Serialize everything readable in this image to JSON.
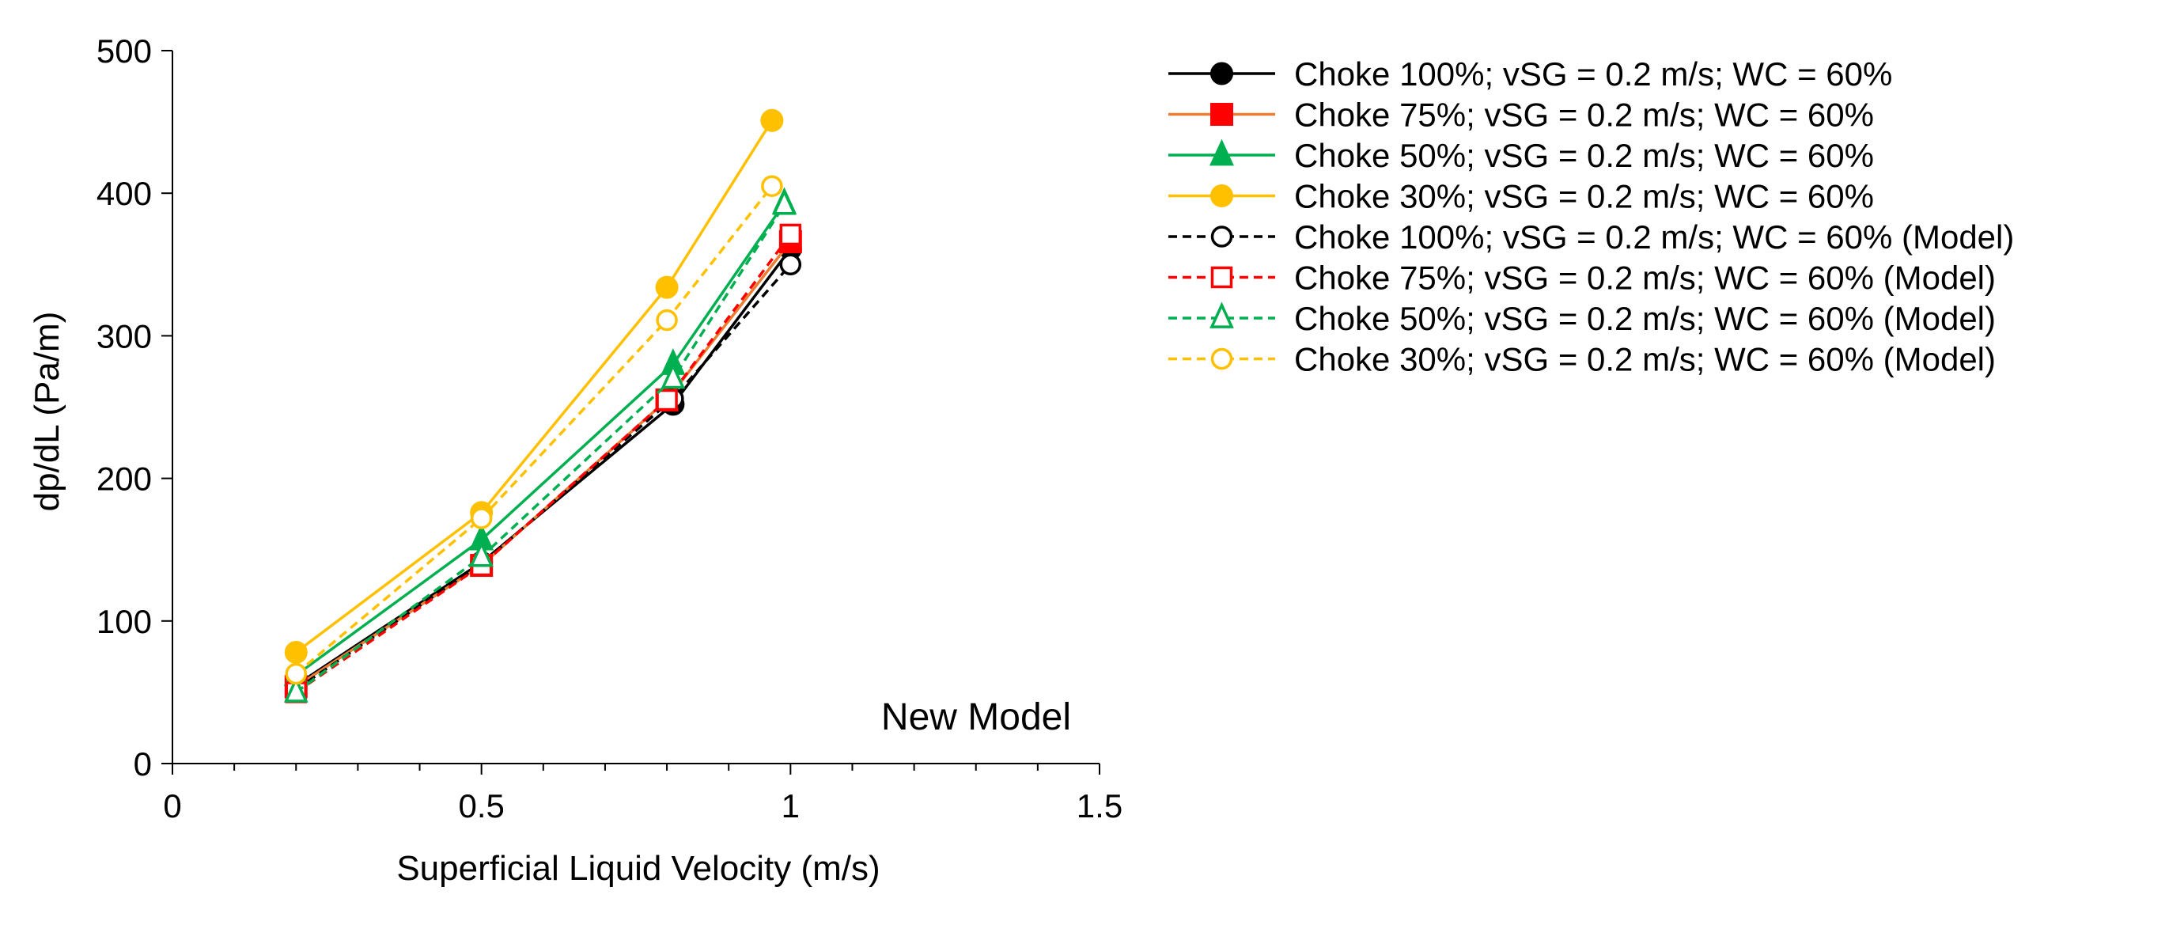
{
  "chart_data": {
    "type": "line",
    "xlabel": "Superficial Liquid Velocity (m/s)",
    "ylabel": "dp/dL  (Pa/m)",
    "xlim": [
      0,
      1.5
    ],
    "ylim": [
      0,
      500
    ],
    "xticks": [
      0,
      0.5,
      1,
      1.5
    ],
    "xtick_labels": [
      "0",
      "0.5",
      "1",
      "1.5"
    ],
    "xminor_step": 0.1,
    "yticks": [
      0,
      100,
      200,
      300,
      400,
      500
    ],
    "ytick_labels": [
      "0",
      "100",
      "200",
      "300",
      "400",
      "500"
    ],
    "grid": false,
    "legend_position": "right",
    "annotation": "New Model",
    "series": [
      {
        "name": "Choke 100%; vSG = 0.2 m/s; WC = 60%",
        "color": "#000000",
        "marker": "circle-filled",
        "dash": "solid",
        "x": [
          0.2,
          0.5,
          0.81,
          1.0
        ],
        "y": [
          55,
          141,
          252,
          361
        ]
      },
      {
        "name": "Choke 75%; vSG = 0.2 m/s; WC = 60%",
        "color": "#ff0000",
        "line_color": "#ed7d31",
        "marker": "square-filled",
        "dash": "solid",
        "x": [
          0.2,
          0.5,
          0.8,
          1.0
        ],
        "y": [
          54,
          139,
          255,
          366
        ]
      },
      {
        "name": "Choke 50%; vSG = 0.2 m/s; WC = 60%",
        "color": "#00b050",
        "marker": "triangle-filled",
        "dash": "solid",
        "x": [
          0.2,
          0.5,
          0.81,
          0.99
        ],
        "y": [
          62,
          157,
          280,
          393
        ]
      },
      {
        "name": "Choke 30%; vSG = 0.2 m/s; WC = 60%",
        "color": "#ffc000",
        "marker": "circle-filled",
        "dash": "solid",
        "x": [
          0.2,
          0.5,
          0.8,
          0.97
        ],
        "y": [
          78,
          176,
          334,
          451
        ]
      },
      {
        "name": "Choke 100%; vSG = 0.2 m/s; WC = 60% (Model)",
        "color": "#000000",
        "marker": "circle-open",
        "dash": "dashed",
        "x": [
          0.2,
          0.5,
          0.81,
          1.0
        ],
        "y": [
          52,
          140,
          256,
          350
        ]
      },
      {
        "name": "Choke 75%; vSG = 0.2 m/s; WC = 60% (Model)",
        "color": "#ff0000",
        "marker": "square-open",
        "dash": "dashed",
        "x": [
          0.2,
          0.5,
          0.8,
          1.0
        ],
        "y": [
          50,
          139,
          255,
          371
        ]
      },
      {
        "name": "Choke 50%; vSG = 0.2 m/s; WC = 60% (Model)",
        "color": "#00b050",
        "marker": "triangle-open",
        "dash": "dashed",
        "x": [
          0.2,
          0.5,
          0.81,
          0.99
        ],
        "y": [
          50,
          145,
          270,
          392
        ]
      },
      {
        "name": "Choke 30%; vSG = 0.2 m/s; WC = 60% (Model)",
        "color": "#ffc000",
        "marker": "circle-open",
        "dash": "dashed",
        "x": [
          0.2,
          0.5,
          0.8,
          0.97
        ],
        "y": [
          63,
          172,
          311,
          405
        ]
      }
    ]
  }
}
